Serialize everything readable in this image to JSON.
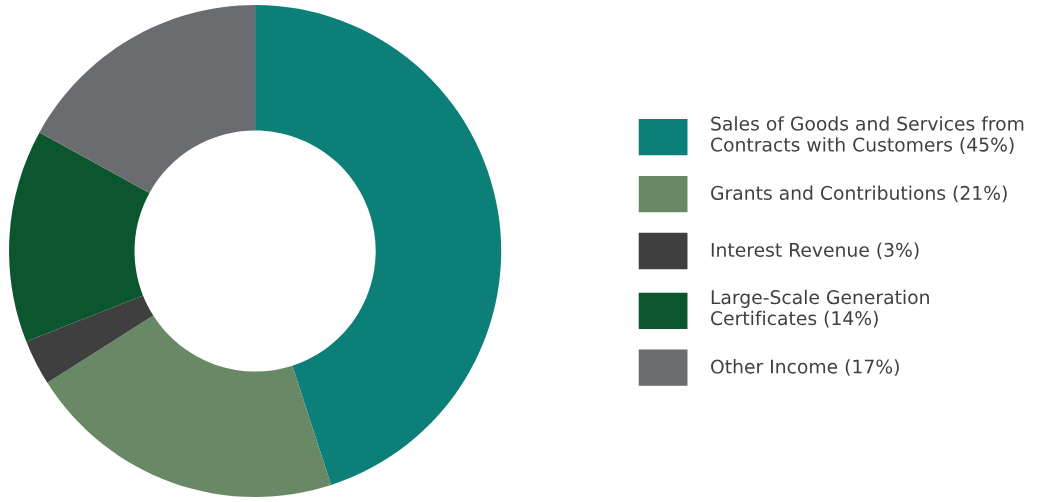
{
  "chart_data": {
    "type": "donut",
    "categories": [
      "Sales of Goods and Services from\nContracts with Customers (45%)",
      "Grants and Contributions (21%)",
      "Interest Revenue (3%)",
      "Large-Scale Generation\nCertificates (14%)",
      "Other Income (17%)"
    ],
    "values": [
      45,
      21,
      3,
      14,
      17
    ],
    "colors": [
      "#0b7f78",
      "#688866",
      "#3f3f3f",
      "#0b562f",
      "#6b6c70"
    ],
    "legend": "right"
  }
}
